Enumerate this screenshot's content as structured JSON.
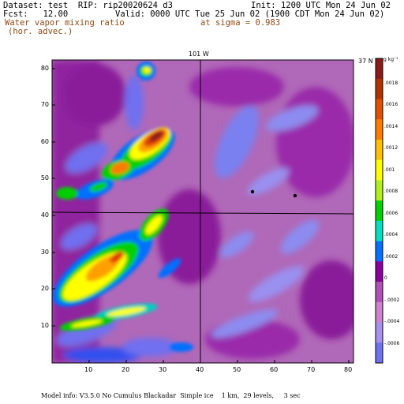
{
  "header": {
    "dataset": "Dataset: test  RIP: rip20020624 d3",
    "init": "Init: 1200 UTC Mon 24 Jun 02",
    "fcst": "Fcst:   12.00",
    "valid": "Valid: 0000 UTC Tue 25 Jun 02 (1900 CDT Mon 24 Jun 02)",
    "field_name": "Water vapor mixing ratio",
    "field_sub": "(hor. advec.)",
    "sigma": "at sigma = 0.983"
  },
  "plot": {
    "top_label": "101 W",
    "right_label": "37 N",
    "x_ticks": [
      "10",
      "20",
      "30",
      "40",
      "50",
      "60",
      "70",
      "80"
    ],
    "y_ticks": [
      "10",
      "20",
      "30",
      "40",
      "50",
      "60",
      "70",
      "80"
    ]
  },
  "colorbar": {
    "unit": "g kg⁻¹",
    "labels": [
      ".0018",
      ".0016",
      ".0014",
      ".0012",
      ".001",
      ".0008",
      ".0006",
      ".0004",
      ".0002",
      "0",
      "-.0002",
      "-.0004",
      "-.0006"
    ],
    "colors": [
      "#8b1a1a",
      "#b03000",
      "#e05000",
      "#ff7a00",
      "#ffc000",
      "#ffff00",
      "#b0f020",
      "#00d000",
      "#00e0c0",
      "#0070ff",
      "#8a009a",
      "#b050b8",
      "#d080d0",
      "#a890f0",
      "#7070f0"
    ]
  },
  "footer": {
    "model_info": "Model info: V3.5.0 No Cumulus Blackadar  Simple ice    1 km,  29 levels,     3 sec"
  }
}
